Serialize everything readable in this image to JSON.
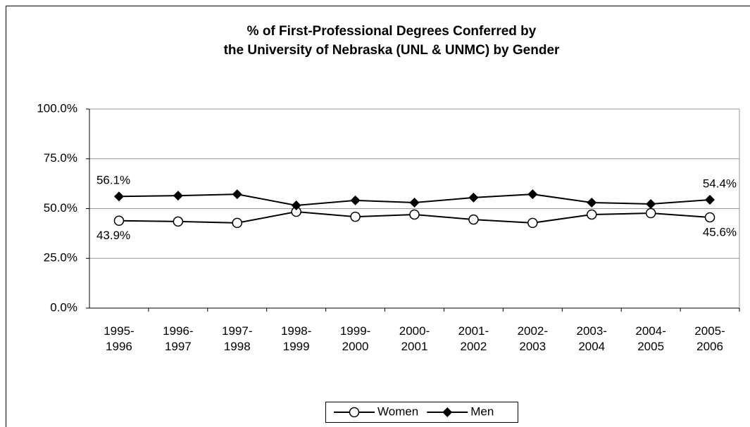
{
  "chart_data": {
    "type": "line",
    "title": [
      "% of First-Professional Degrees Conferred by",
      "the University of Nebraska (UNL & UNMC) by Gender"
    ],
    "categories": [
      "1995-1996",
      "1996-1997",
      "1997-1998",
      "1998-1999",
      "1999-2000",
      "2000-2001",
      "2001-2002",
      "2002-2003",
      "2003-2004",
      "2004-2005",
      "2005-2006"
    ],
    "series": [
      {
        "name": "Women",
        "color": "#000000",
        "marker": "circle",
        "values": [
          43.9,
          43.5,
          42.8,
          48.4,
          45.9,
          47.0,
          44.5,
          42.8,
          47.0,
          47.7,
          45.6
        ],
        "value_labels": [
          "43.9%",
          null,
          null,
          null,
          null,
          null,
          null,
          null,
          null,
          null,
          "45.6%"
        ]
      },
      {
        "name": "Men",
        "color": "#000000",
        "marker": "diamond",
        "values": [
          56.1,
          56.5,
          57.2,
          51.6,
          54.1,
          53.0,
          55.5,
          57.2,
          53.0,
          52.3,
          54.4
        ],
        "value_labels": [
          "56.1%",
          null,
          null,
          null,
          null,
          null,
          null,
          null,
          null,
          null,
          "54.4%"
        ]
      }
    ],
    "ylim": [
      0,
      100
    ],
    "yticks": [
      {
        "value": 0,
        "label": "0.0%"
      },
      {
        "value": 25,
        "label": "25.0%"
      },
      {
        "value": 50,
        "label": "50.0%"
      },
      {
        "value": 75,
        "label": "75.0%"
      },
      {
        "value": 100,
        "label": "100.0%"
      }
    ],
    "grid": true,
    "legend": "bottom"
  }
}
